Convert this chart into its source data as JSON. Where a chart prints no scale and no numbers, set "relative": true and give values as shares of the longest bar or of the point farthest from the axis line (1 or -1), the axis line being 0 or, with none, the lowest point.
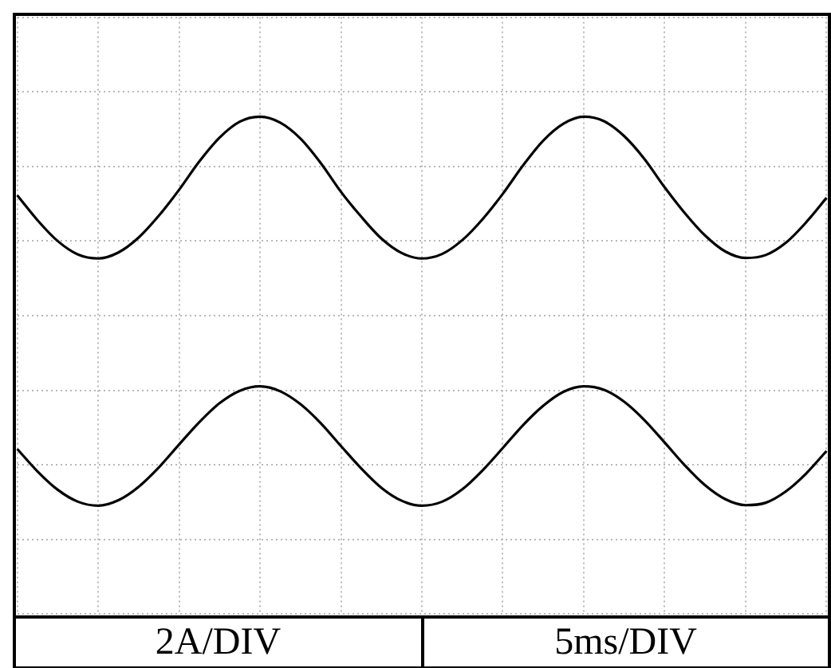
{
  "chart_data": {
    "type": "line",
    "relative": true,
    "grid": true,
    "annotations": [
      "2A/DIV",
      "5ms/DIV"
    ],
    "categories": [
      null,
      null,
      null,
      null,
      null,
      null,
      null,
      null,
      null,
      null,
      null,
      null,
      null,
      null,
      null,
      null,
      null,
      null,
      null,
      null,
      null,
      null,
      null,
      null,
      null,
      null,
      null,
      null,
      null,
      null,
      null,
      null,
      null,
      null,
      null,
      null,
      null,
      null,
      null,
      null,
      null
    ],
    "series": [
      {
        "color": "#000000",
        "values": [
          0.842,
          0.792,
          0.75,
          0.723,
          0.715,
          0.727,
          0.757,
          0.801,
          0.853,
          0.91,
          0.958,
          0.99,
          1.0,
          0.988,
          0.956,
          0.907,
          0.849,
          0.799,
          0.755,
          0.726,
          0.715,
          0.724,
          0.752,
          0.794,
          0.845,
          0.902,
          0.952,
          0.986,
          1.0,
          0.991,
          0.961,
          0.915,
          0.858,
          0.806,
          0.761,
          0.729,
          0.716,
          0.722,
          0.747,
          0.788,
          0.837
        ]
      },
      {
        "color": "#000000",
        "values": [
          0.332,
          0.287,
          0.25,
          0.226,
          0.218,
          0.229,
          0.256,
          0.295,
          0.341,
          0.386,
          0.424,
          0.449,
          0.458,
          0.448,
          0.422,
          0.384,
          0.338,
          0.293,
          0.254,
          0.228,
          0.218,
          0.226,
          0.251,
          0.289,
          0.334,
          0.38,
          0.419,
          0.447,
          0.458,
          0.451,
          0.427,
          0.39,
          0.345,
          0.299,
          0.259,
          0.231,
          0.219,
          0.224,
          0.247,
          0.283,
          0.328
        ]
      }
    ]
  }
}
